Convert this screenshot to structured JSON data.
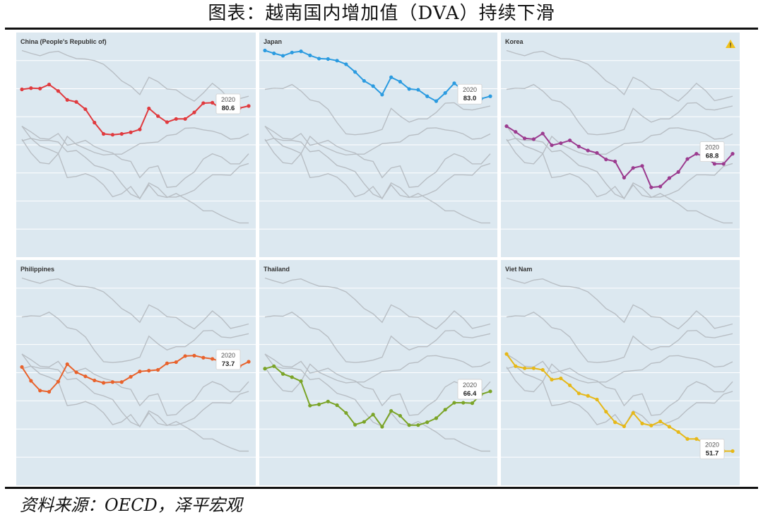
{
  "title": "图表：越南国内增加值（DVA）持续下滑",
  "source": "资料来源：OECD，泽平宏观",
  "colors": {
    "panel_bg": "#dce8f0",
    "context": "#b8bec4",
    "grid": "#ffffff"
  },
  "chart_data": [
    {
      "type": "line",
      "name": "China (People's Republic of)",
      "color": "#e03a3e",
      "x": [
        1995,
        1996,
        1997,
        1998,
        1999,
        2000,
        2001,
        2002,
        2003,
        2004,
        2005,
        2006,
        2007,
        2008,
        2009,
        2010,
        2011,
        2012,
        2013,
        2014,
        2015,
        2016,
        2017,
        2018,
        2019,
        2020
      ],
      "values": [
        84.7,
        85.0,
        84.9,
        85.9,
        84.3,
        82.1,
        81.6,
        79.8,
        76.5,
        73.7,
        73.5,
        73.7,
        74.1,
        74.8,
        80.0,
        78.1,
        76.6,
        77.4,
        77.4,
        79.0,
        81.3,
        81.4,
        79.8,
        79.6,
        80.1,
        80.6
      ],
      "label_year": "2020",
      "label_value": "80.6"
    },
    {
      "type": "line",
      "name": "Japan",
      "color": "#2b9be0",
      "x": [
        1995,
        1996,
        1997,
        1998,
        1999,
        2000,
        2001,
        2002,
        2003,
        2004,
        2005,
        2006,
        2007,
        2008,
        2009,
        2010,
        2011,
        2012,
        2013,
        2014,
        2015,
        2016,
        2017,
        2018,
        2019,
        2020
      ],
      "values": [
        94.3,
        93.6,
        93.0,
        93.8,
        94.1,
        93.1,
        92.3,
        92.2,
        91.8,
        90.9,
        89.0,
        86.8,
        85.5,
        83.4,
        87.7,
        86.6,
        84.8,
        84.6,
        83.0,
        81.8,
        83.8,
        86.2,
        84.4,
        81.9,
        82.4,
        83.0
      ],
      "label_year": "2020",
      "label_value": "83.0"
    },
    {
      "type": "line",
      "name": "Korea",
      "color": "#9b3b8f",
      "x": [
        1995,
        1996,
        1997,
        1998,
        1999,
        2000,
        2001,
        2002,
        2003,
        2004,
        2005,
        2006,
        2007,
        2008,
        2009,
        2010,
        2011,
        2012,
        2013,
        2014,
        2015,
        2016,
        2017,
        2018,
        2019,
        2020
      ],
      "values": [
        75.6,
        74.2,
        72.6,
        72.4,
        73.8,
        70.9,
        71.4,
        72.1,
        70.6,
        69.6,
        69.0,
        67.4,
        66.9,
        62.9,
        65.3,
        65.8,
        60.5,
        60.7,
        62.8,
        64.3,
        67.5,
        68.8,
        68.0,
        66.3,
        66.3,
        68.8
      ],
      "label_year": "2020",
      "label_value": "68.8"
    },
    {
      "type": "line",
      "name": "Philippines",
      "color": "#e8622c",
      "x": [
        1995,
        1996,
        1997,
        1998,
        1999,
        2000,
        2001,
        2002,
        2003,
        2004,
        2005,
        2006,
        2007,
        2008,
        2009,
        2010,
        2011,
        2012,
        2013,
        2014,
        2015,
        2016,
        2017,
        2018,
        2019,
        2020
      ],
      "values": [
        72.4,
        69.0,
        66.6,
        66.3,
        68.8,
        73.1,
        71.1,
        70.1,
        69.1,
        68.5,
        68.7,
        68.7,
        70.0,
        71.3,
        71.5,
        71.7,
        73.3,
        73.6,
        75.1,
        75.2,
        74.7,
        74.4,
        73.7,
        72.4,
        72.6,
        73.7
      ],
      "label_year": "2020",
      "label_value": "73.7"
    },
    {
      "type": "line",
      "name": "Thailand",
      "color": "#7ba428",
      "x": [
        1995,
        1996,
        1997,
        1998,
        1999,
        2000,
        2001,
        2002,
        2003,
        2004,
        2005,
        2006,
        2007,
        2008,
        2009,
        2010,
        2011,
        2012,
        2013,
        2014,
        2015,
        2016,
        2017,
        2018,
        2019,
        2020
      ],
      "values": [
        72.0,
        72.6,
        70.7,
        69.9,
        68.9,
        62.9,
        63.2,
        63.9,
        63.0,
        61.1,
        58.2,
        58.9,
        60.7,
        57.7,
        61.6,
        60.4,
        58.1,
        58.1,
        58.8,
        59.8,
        61.9,
        63.6,
        63.6,
        63.5,
        65.7,
        66.4
      ],
      "label_year": "2020",
      "label_value": "66.4"
    },
    {
      "type": "line",
      "name": "Viet Nam",
      "color": "#e6b818",
      "x": [
        1995,
        1996,
        1997,
        1998,
        1999,
        2000,
        2001,
        2002,
        2003,
        2004,
        2005,
        2006,
        2007,
        2008,
        2009,
        2010,
        2011,
        2012,
        2013,
        2014,
        2015,
        2016,
        2017,
        2018,
        2019,
        2020
      ],
      "values": [
        75.6,
        72.6,
        72.1,
        72.1,
        71.7,
        69.3,
        69.6,
        67.9,
        65.9,
        65.3,
        64.4,
        61.4,
        58.8,
        57.8,
        61.1,
        58.5,
        58.0,
        59.0,
        57.7,
        56.4,
        54.7,
        54.7,
        53.5,
        52.5,
        51.7,
        51.7
      ],
      "label_year": "2020",
      "label_value": "51.7"
    }
  ]
}
